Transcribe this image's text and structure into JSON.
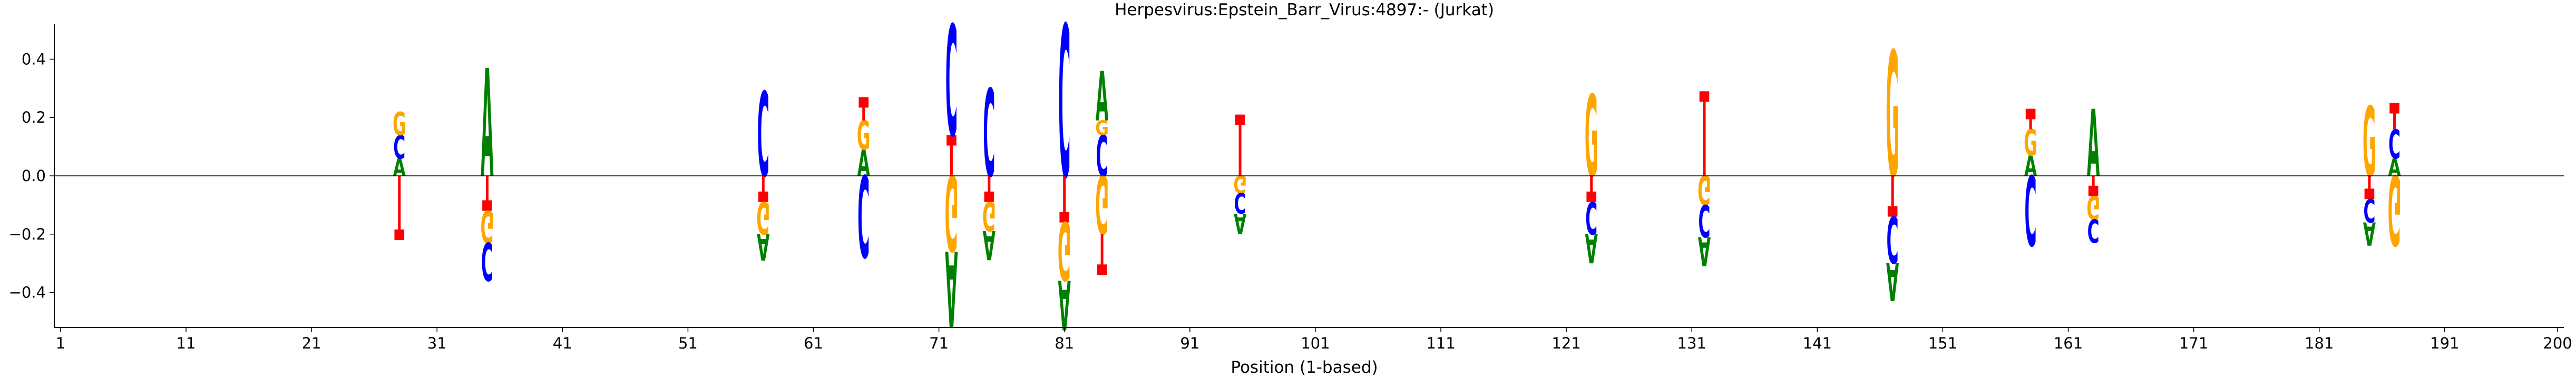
{
  "chart_data": {
    "type": "sequence-logo",
    "title": "Herpesvirus:Epstein_Barr_Virus:4897:-  (Jurkat)",
    "xlabel": "Position (1-based)",
    "ylabel": "",
    "xlim": [
      0.5,
      200.5
    ],
    "ylim": [
      -0.52,
      0.52
    ],
    "x_ticks": [
      1,
      11,
      21,
      31,
      41,
      51,
      61,
      71,
      81,
      91,
      101,
      111,
      121,
      131,
      141,
      151,
      161,
      171,
      181,
      191,
      200
    ],
    "y_ticks": [
      -0.4,
      -0.2,
      0.0,
      0.2,
      0.4
    ],
    "y_tick_labels": [
      "−0.4",
      "−0.2",
      "0.0",
      "0.2",
      "0.4"
    ],
    "zero_line": true,
    "grid": false,
    "base_colors": {
      "A": "#008000",
      "C": "#0000ff",
      "G": "#ffa500",
      "T": "#ff0000"
    },
    "positions": [
      {
        "x": 28,
        "pos": [
          [
            "A",
            0.06
          ],
          [
            "C",
            0.08
          ],
          [
            "G",
            0.08
          ]
        ],
        "neg": [
          [
            "T",
            -0.22
          ]
        ]
      },
      {
        "x": 35,
        "pos": [
          [
            "A",
            0.37
          ]
        ],
        "neg": [
          [
            "T",
            -0.12
          ],
          [
            "G",
            -0.11
          ],
          [
            "C",
            -0.13
          ]
        ]
      },
      {
        "x": 57,
        "pos": [
          [
            "C",
            0.29
          ]
        ],
        "neg": [
          [
            "T",
            -0.09
          ],
          [
            "G",
            -0.11
          ],
          [
            "A",
            -0.09
          ]
        ]
      },
      {
        "x": 65,
        "pos": [
          [
            "A",
            0.09
          ],
          [
            "G",
            0.1
          ],
          [
            "T",
            0.08
          ]
        ],
        "neg": [
          [
            "C",
            -0.28
          ]
        ]
      },
      {
        "x": 72,
        "pos": [
          [
            "T",
            0.14
          ],
          [
            "C",
            0.38
          ]
        ],
        "neg": [
          [
            "G",
            -0.26
          ],
          [
            "A",
            -0.26
          ]
        ]
      },
      {
        "x": 75,
        "pos": [
          [
            "C",
            0.3
          ]
        ],
        "neg": [
          [
            "T",
            -0.09
          ],
          [
            "G",
            -0.1
          ],
          [
            "A",
            -0.1
          ]
        ]
      },
      {
        "x": 81,
        "pos": [
          [
            "C",
            0.52
          ]
        ],
        "neg": [
          [
            "T",
            -0.16
          ],
          [
            "G",
            -0.2
          ],
          [
            "A",
            -0.17
          ]
        ]
      },
      {
        "x": 84,
        "pos": [
          [
            "C",
            0.14
          ],
          [
            "G",
            0.05
          ],
          [
            "A",
            0.17
          ]
        ],
        "neg": [
          [
            "G",
            -0.2
          ],
          [
            "T",
            -0.14
          ]
        ]
      },
      {
        "x": 95,
        "pos": [
          [
            "T",
            0.21
          ]
        ],
        "neg": [
          [
            "G",
            -0.06
          ],
          [
            "C",
            -0.07
          ],
          [
            "A",
            -0.07
          ]
        ]
      },
      {
        "x": 123,
        "pos": [
          [
            "G",
            0.28
          ]
        ],
        "neg": [
          [
            "T",
            -0.09
          ],
          [
            "C",
            -0.11
          ],
          [
            "A",
            -0.1
          ]
        ]
      },
      {
        "x": 132,
        "pos": [
          [
            "T",
            0.29
          ]
        ],
        "neg": [
          [
            "G",
            -0.1
          ],
          [
            "C",
            -0.11
          ],
          [
            "A",
            -0.1
          ]
        ]
      },
      {
        "x": 147,
        "pos": [
          [
            "G",
            0.43
          ]
        ],
        "neg": [
          [
            "T",
            -0.14
          ],
          [
            "C",
            -0.16
          ],
          [
            "A",
            -0.13
          ]
        ]
      },
      {
        "x": 158,
        "pos": [
          [
            "A",
            0.07
          ],
          [
            "G",
            0.09
          ],
          [
            "T",
            0.07
          ]
        ],
        "neg": [
          [
            "C",
            -0.24
          ]
        ]
      },
      {
        "x": 163,
        "pos": [
          [
            "A",
            0.23
          ]
        ],
        "neg": [
          [
            "T",
            -0.07
          ],
          [
            "G",
            -0.08
          ],
          [
            "C",
            -0.08
          ]
        ]
      },
      {
        "x": 185,
        "pos": [
          [
            "G",
            0.24
          ]
        ],
        "neg": [
          [
            "T",
            -0.08
          ],
          [
            "C",
            -0.08
          ],
          [
            "A",
            -0.08
          ]
        ]
      },
      {
        "x": 187,
        "pos": [
          [
            "A",
            0.06
          ],
          [
            "C",
            0.1
          ],
          [
            "T",
            0.09
          ]
        ],
        "neg": [
          [
            "G",
            -0.24
          ]
        ]
      }
    ]
  }
}
